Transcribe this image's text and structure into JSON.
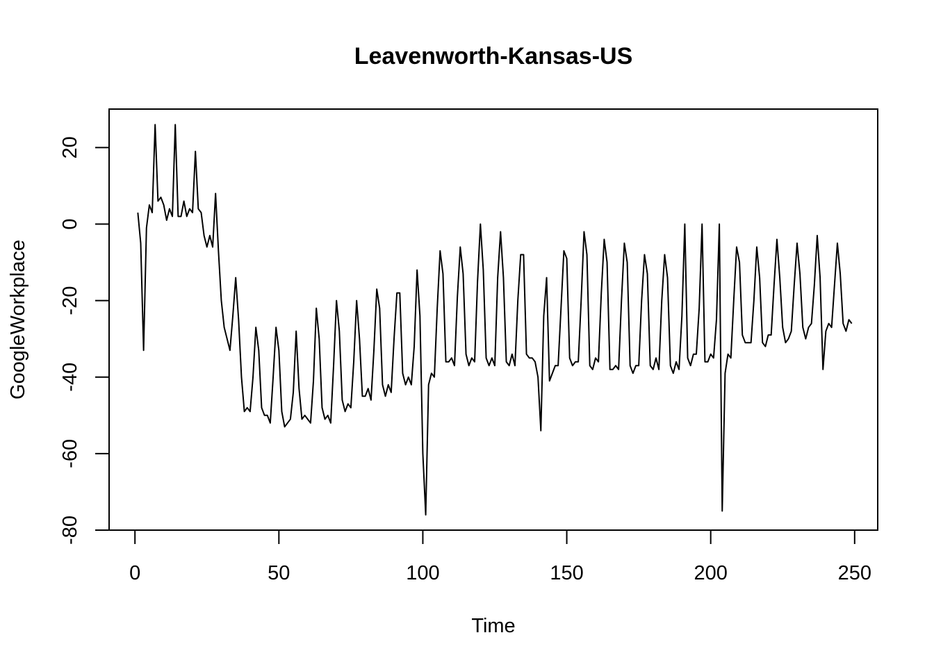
{
  "chart_data": {
    "type": "line",
    "title": "Leavenworth-Kansas-US",
    "xlabel": "Time",
    "ylabel": "GoogleWorkplace",
    "xlim": [
      1,
      248
    ],
    "ylim": [
      -80,
      28
    ],
    "xticks": [
      0,
      50,
      100,
      150,
      200,
      250
    ],
    "yticks": [
      -80,
      -60,
      -40,
      -20,
      0,
      20
    ],
    "grid": false,
    "series": [
      {
        "color": "#000000",
        "values": [
          3,
          -5,
          -33,
          -1,
          5,
          3,
          26,
          6,
          7,
          5,
          1,
          4,
          2,
          26,
          2,
          2,
          6,
          2,
          4,
          3,
          19,
          4,
          3,
          -3,
          -6,
          -3,
          -6,
          8,
          -7,
          -20,
          -27,
          -30,
          -33,
          -24,
          -14,
          -25,
          -40,
          -49,
          -48,
          -49,
          -40,
          -27,
          -33,
          -48,
          -50,
          -50,
          -52,
          -40,
          -27,
          -33,
          -49,
          -53,
          -52,
          -51,
          -44,
          -28,
          -43,
          -51,
          -50,
          -51,
          -52,
          -41,
          -22,
          -30,
          -48,
          -51,
          -50,
          -52,
          -37,
          -20,
          -28,
          -46,
          -49,
          -47,
          -48,
          -36,
          -20,
          -30,
          -45,
          -45,
          -43,
          -46,
          -33,
          -17,
          -22,
          -42,
          -45,
          -42,
          -44,
          -30,
          -18,
          -18,
          -39,
          -42,
          -40,
          -42,
          -32,
          -12,
          -24,
          -60,
          -76,
          -42,
          -39,
          -40,
          -22,
          -7,
          -13,
          -36,
          -36,
          -35,
          -37,
          -19,
          -6,
          -13,
          -34,
          -37,
          -35,
          -36,
          -15,
          0,
          -12,
          -35,
          -37,
          -35,
          -37,
          -14,
          -2,
          -14,
          -36,
          -37,
          -34,
          -37,
          -20,
          -8,
          -8,
          -34,
          -35,
          -35,
          -36,
          -40,
          -54,
          -24,
          -14,
          -41,
          -39,
          -37,
          -37,
          -22,
          -7,
          -9,
          -35,
          -37,
          -36,
          -36,
          -20,
          -2,
          -8,
          -37,
          -38,
          -35,
          -36,
          -18,
          -4,
          -10,
          -38,
          -38,
          -37,
          -38,
          -20,
          -5,
          -10,
          -37,
          -39,
          -37,
          -37,
          -20,
          -8,
          -13,
          -37,
          -38,
          -35,
          -38,
          -20,
          -8,
          -14,
          -37,
          -39,
          -36,
          -38,
          -24,
          0,
          -35,
          -37,
          -34,
          -34,
          -22,
          0,
          -36,
          -36,
          -34,
          -35,
          -25,
          0,
          -75,
          -39,
          -34,
          -35,
          -20,
          -6,
          -10,
          -29,
          -31,
          -31,
          -31,
          -20,
          -6,
          -14,
          -31,
          -32,
          -29,
          -29,
          -16,
          -4,
          -14,
          -27,
          -31,
          -30,
          -28,
          -16,
          -5,
          -13,
          -27,
          -30,
          -27,
          -26,
          -16,
          -3,
          -14,
          -38,
          -28,
          -26,
          -27,
          -16,
          -5,
          -13,
          -26,
          -28,
          -25,
          -26
        ]
      }
    ]
  }
}
